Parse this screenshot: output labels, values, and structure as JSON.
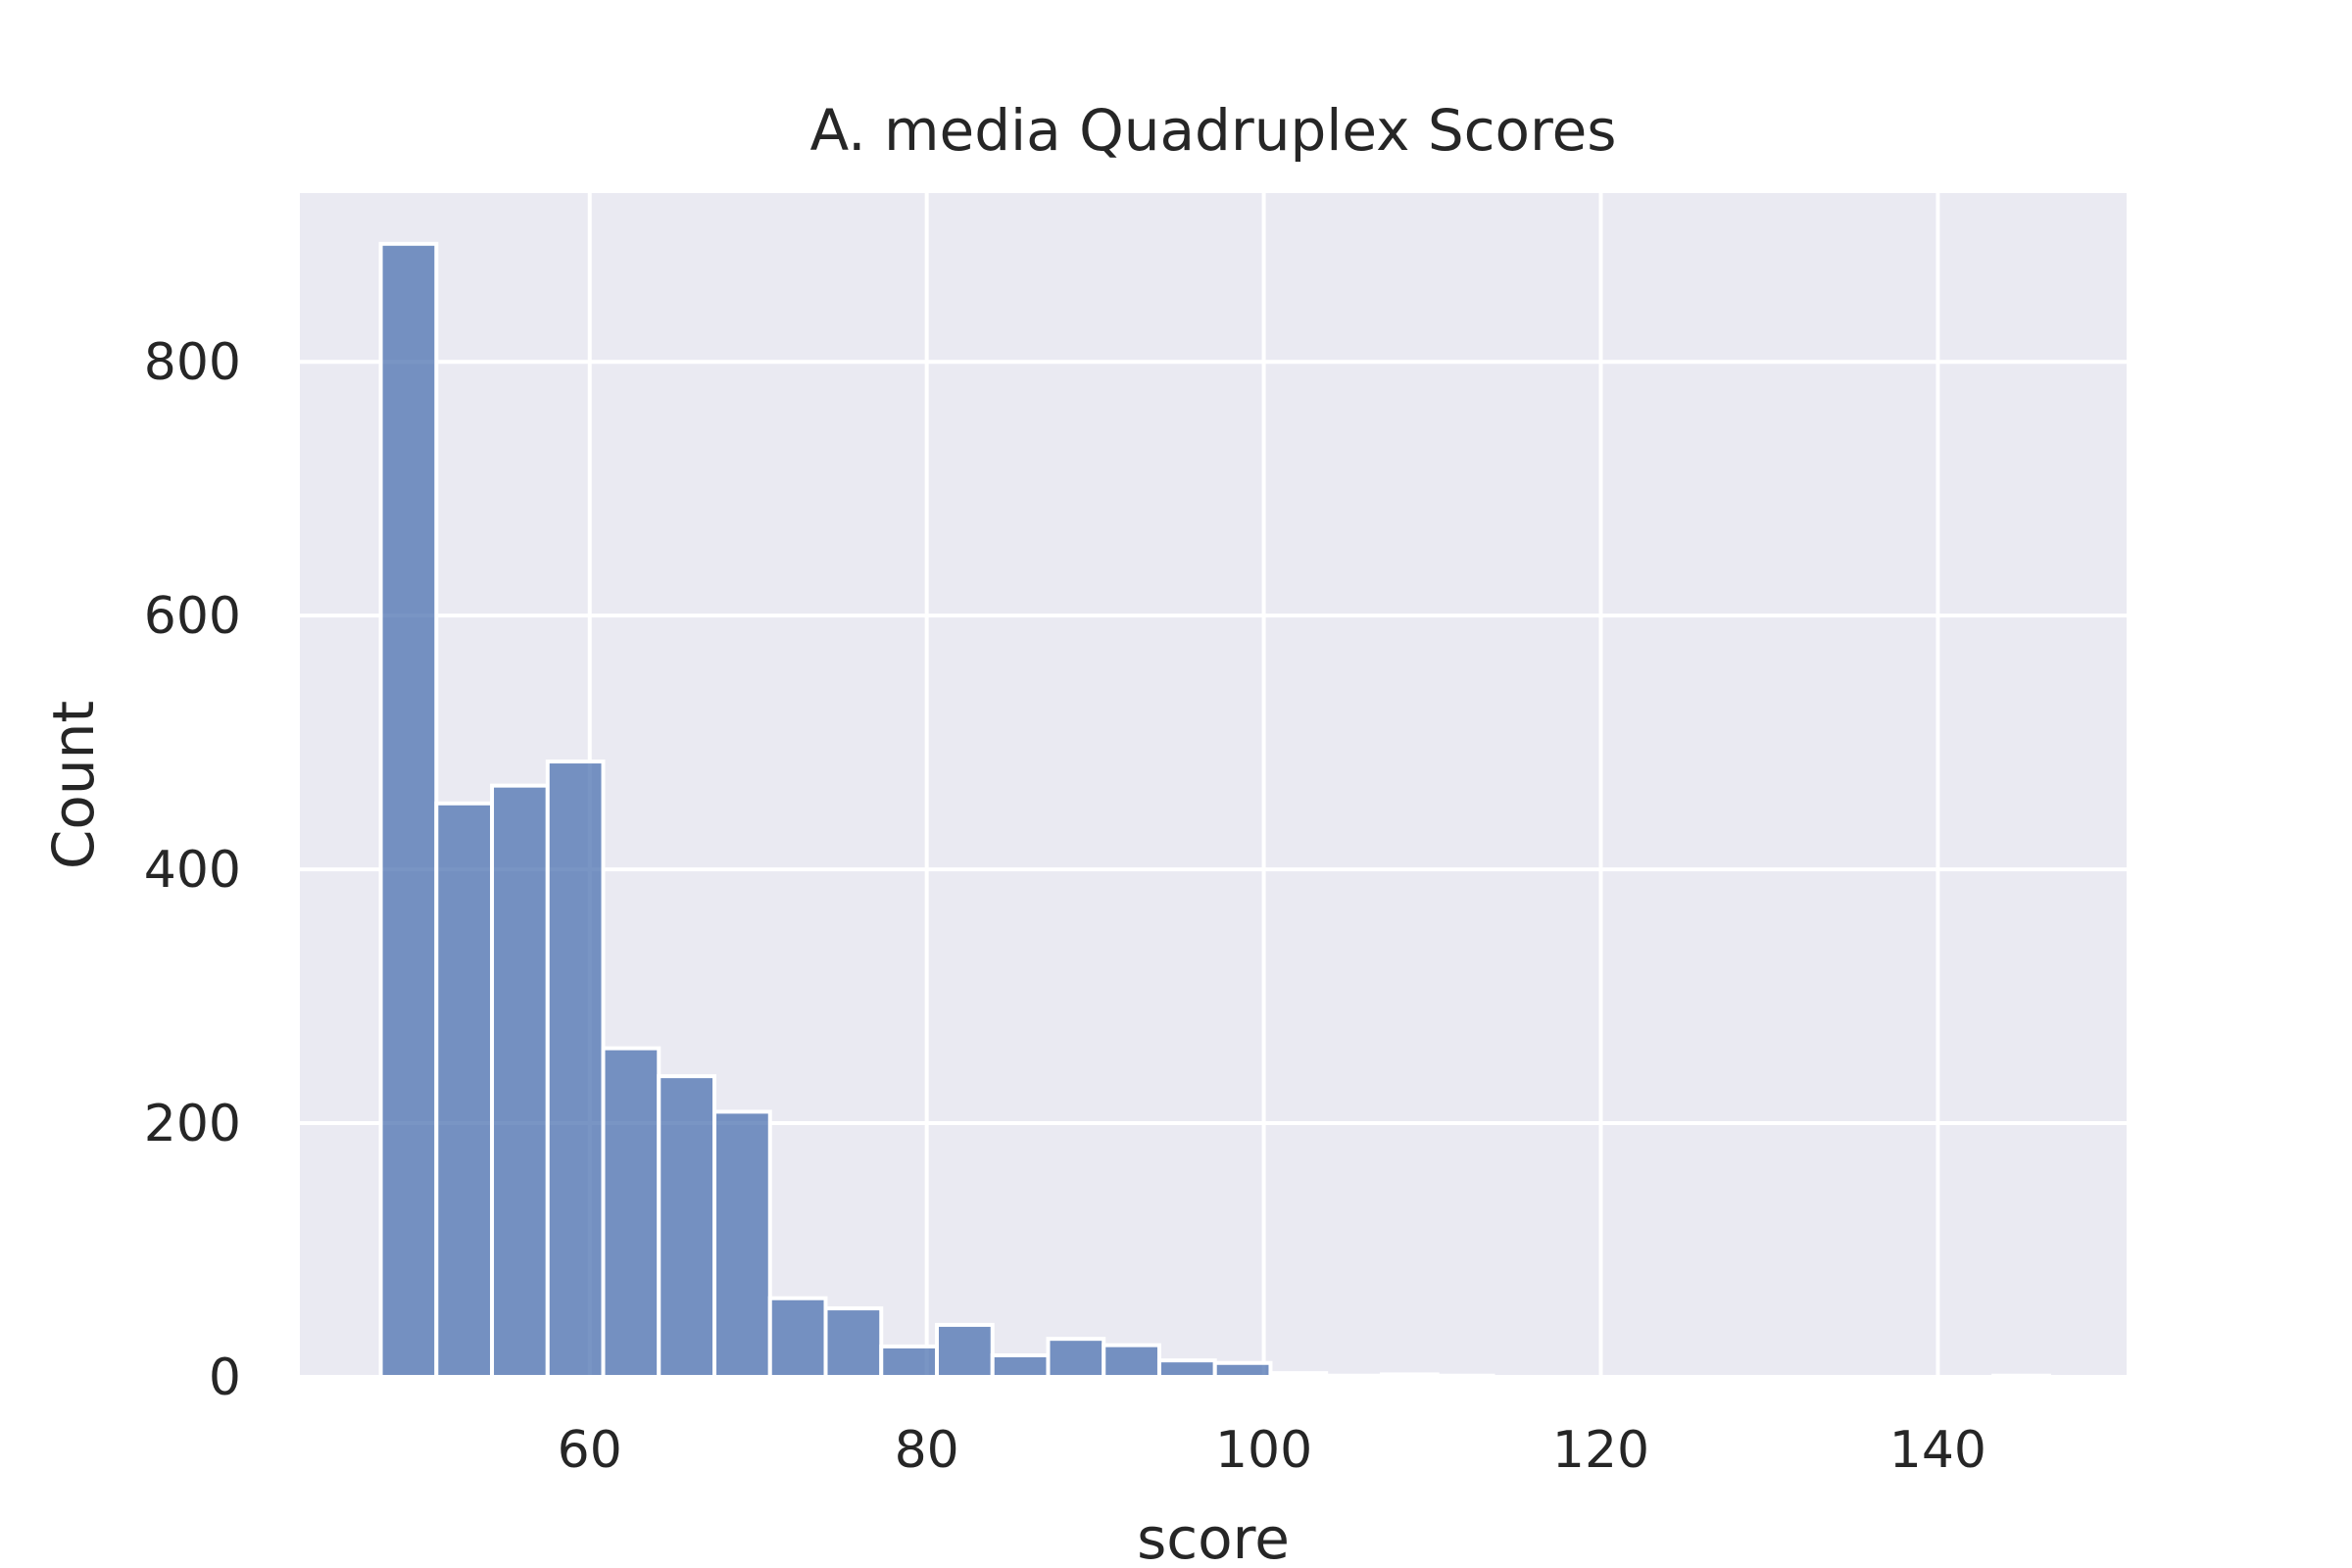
{
  "chart_data": {
    "type": "bar",
    "title": "A. media Quadruplex Scores",
    "xlabel": "score",
    "ylabel": "Count",
    "xlim": [
      42.8,
      151.2
    ],
    "ylim": [
      0,
      933
    ],
    "xticks": [
      60,
      80,
      100,
      120,
      140
    ],
    "yticks": [
      0,
      200,
      400,
      600,
      800
    ],
    "grid": true,
    "bar_color": "#4c72b0",
    "background": "#eaeaf2",
    "bin_edges": [
      47.6,
      50.9,
      54.2,
      57.5,
      60.8,
      64.1,
      67.4,
      70.7,
      74.0,
      77.3,
      80.6,
      83.9,
      87.2,
      90.5,
      93.8,
      97.1,
      100.4,
      103.7,
      107.0,
      110.3,
      113.6,
      116.9,
      120.2,
      123.5,
      126.8,
      130.1,
      133.4,
      136.7,
      140.0,
      143.3,
      146.6
    ],
    "values": [
      893,
      452,
      466,
      485,
      259,
      237,
      209,
      62,
      54,
      24,
      41,
      17,
      30,
      25,
      13,
      11,
      3,
      1,
      2,
      1,
      0,
      0,
      0,
      0,
      0,
      0,
      0,
      0,
      0,
      1
    ]
  }
}
